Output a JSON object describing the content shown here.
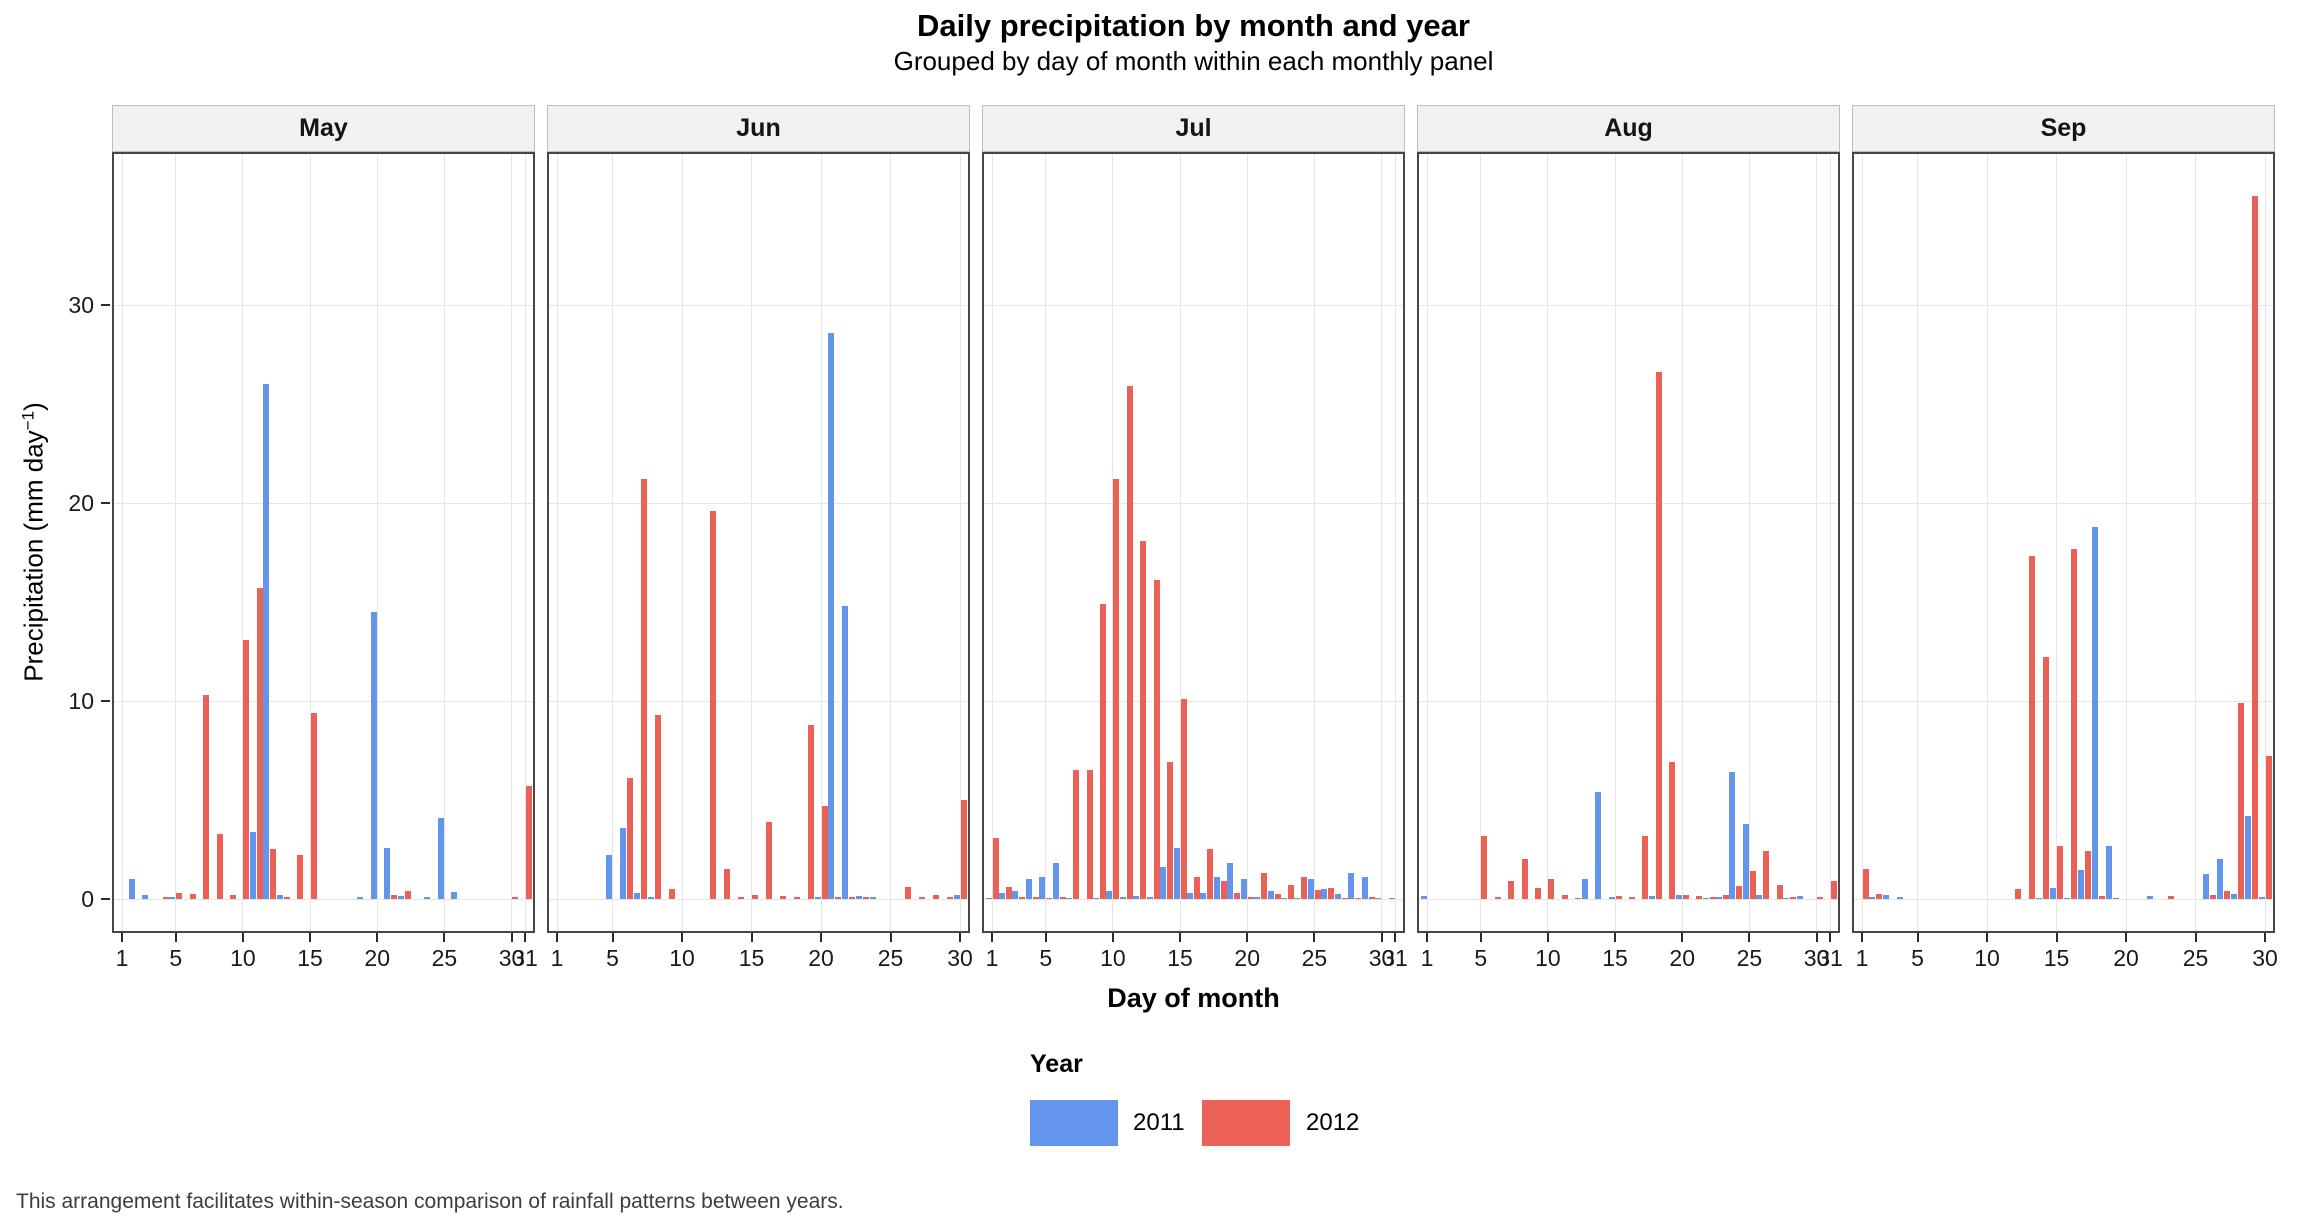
{
  "caption": "This arrangement facilitates within-season comparison of rainfall patterns between years.",
  "chart_data": {
    "type": "bar",
    "title": "Daily precipitation by month and year",
    "subtitle": "Grouped by day of month within each monthly panel",
    "xlabel": "Day of month",
    "ylabel": "Precipitation (mm day⁻¹)",
    "ylabel_parts": {
      "prefix": "Precipitation (mm day",
      "sup": "−1",
      "suffix": ")"
    },
    "ylim": [
      0,
      37.7
    ],
    "yticks": [
      0,
      10,
      20,
      30
    ],
    "grid": "major gridlines only, light gray on white panels",
    "legend_position": "bottom-center",
    "facet": "columns by month",
    "legend": {
      "title": "Year",
      "entries": [
        {
          "label": "2011",
          "color": "#6495ED"
        },
        {
          "label": "2012",
          "color": "#EB6156"
        }
      ]
    },
    "style": {
      "panel_border": "#474747",
      "strip_bg": "#F1F1F1",
      "strip_border": "#BDBDBD",
      "grid_color": "#E6E6E6",
      "tick_color": "#2b2b2b"
    },
    "panels": [
      {
        "month": "May",
        "days": 31,
        "xticks": [
          1,
          5,
          10,
          15,
          20,
          25,
          30,
          31
        ],
        "series": [
          {
            "name": "2011",
            "values": [
              0,
              1,
              0.2,
              0,
              0.1,
              0,
              0,
              0,
              0,
              0,
              3.4,
              26,
              0.2,
              0,
              0,
              0,
              0,
              0,
              0.1,
              14.5,
              2.6,
              0.15,
              0,
              0.1,
              4.1,
              0.35,
              0,
              0,
              0,
              0,
              0
            ]
          },
          {
            "name": "2012",
            "values": [
              0,
              0,
              0,
              0.1,
              0.3,
              0.25,
              10.3,
              3.3,
              0.2,
              13.1,
              15.7,
              2.5,
              0.1,
              2.2,
              9.4,
              0,
              0,
              0,
              0,
              0,
              0.2,
              0.4,
              0,
              0,
              0,
              0,
              0,
              0,
              0,
              0.1,
              5.7
            ]
          }
        ]
      },
      {
        "month": "Jun",
        "days": 30,
        "xticks": [
          1,
          5,
          10,
          15,
          20,
          25,
          30
        ],
        "series": [
          {
            "name": "2011",
            "values": [
              0,
              0,
              0,
              0,
              2.2,
              3.6,
              0.3,
              0.1,
              0,
              0,
              0,
              0,
              0,
              0,
              0,
              0,
              0,
              0,
              0,
              0.1,
              28.6,
              14.8,
              0.15,
              0.1,
              0,
              0,
              0,
              0,
              0,
              0.2
            ]
          },
          {
            "name": "2012",
            "values": [
              0,
              0,
              0,
              0,
              0,
              6.1,
              21.2,
              9.3,
              0.5,
              0,
              0,
              19.6,
              1.5,
              0.1,
              0.2,
              3.9,
              0.15,
              0.1,
              8.8,
              4.7,
              0.1,
              0.1,
              0.1,
              0,
              0,
              0.6,
              0.1,
              0.2,
              0.1,
              5
            ]
          }
        ]
      },
      {
        "month": "Jul",
        "days": 31,
        "xticks": [
          1,
          5,
          10,
          15,
          20,
          25,
          30,
          31
        ],
        "series": [
          {
            "name": "2011",
            "values": [
              0.05,
              0.3,
              0.4,
              1,
              1.1,
              1.8,
              0.05,
              0,
              0.05,
              0.4,
              0.1,
              0.15,
              0.1,
              1.6,
              2.6,
              0.3,
              0.3,
              1.1,
              1.8,
              1,
              0.1,
              0.4,
              0.05,
              0.05,
              1,
              0.5,
              0.25,
              1.3,
              1.1,
              0.05,
              0.05
            ]
          },
          {
            "name": "2012",
            "values": [
              3.1,
              0.6,
              0.1,
              0.1,
              0.05,
              0.1,
              6.5,
              6.5,
              14.9,
              21.2,
              25.9,
              18.1,
              16.1,
              6.9,
              10.1,
              1.1,
              2.5,
              0.9,
              0.3,
              0.1,
              1.3,
              0.25,
              0.7,
              1.1,
              0.45,
              0.55,
              0.05,
              0.05,
              0.1,
              0,
              0
            ]
          }
        ]
      },
      {
        "month": "Aug",
        "days": 31,
        "xticks": [
          1,
          5,
          10,
          15,
          20,
          25,
          30,
          31
        ],
        "series": [
          {
            "name": "2011",
            "values": [
              0.15,
              0,
              0,
              0,
              0,
              0,
              0,
              0,
              0,
              0,
              0,
              0,
              1,
              5.4,
              0.1,
              0,
              0,
              0.15,
              0,
              0.2,
              0,
              0.05,
              0.1,
              6.4,
              3.8,
              0.2,
              0,
              0.05,
              0.15,
              0,
              0
            ]
          },
          {
            "name": "2012",
            "values": [
              0,
              0,
              0,
              0,
              3.2,
              0.1,
              0.9,
              2,
              0.55,
              1,
              0.2,
              0.05,
              0,
              0,
              0.15,
              0.1,
              3.2,
              26.6,
              6.9,
              0.2,
              0.15,
              0.1,
              0.2,
              0.65,
              1.4,
              2.4,
              0.7,
              0.1,
              0,
              0.1,
              0.9
            ]
          }
        ]
      },
      {
        "month": "Sep",
        "days": 30,
        "xticks": [
          1,
          5,
          10,
          15,
          20,
          25,
          30
        ],
        "series": [
          {
            "name": "2011",
            "values": [
              0,
              0.1,
              0.2,
              0.1,
              0,
              0,
              0,
              0,
              0,
              0,
              0,
              0,
              0,
              0.05,
              0.55,
              0.05,
              1.45,
              18.8,
              2.7,
              0,
              0,
              0.15,
              0,
              0,
              0,
              1.25,
              2,
              0.25,
              4.2,
              0.1
            ]
          },
          {
            "name": "2012",
            "values": [
              1.5,
              0.25,
              0,
              0,
              0,
              0,
              0,
              0,
              0,
              0,
              0,
              0.5,
              17.3,
              12.2,
              2.7,
              17.7,
              2.4,
              0.15,
              0.05,
              0,
              0,
              0,
              0.15,
              0,
              0,
              0.2,
              0.4,
              9.9,
              35.5,
              7.2
            ]
          }
        ]
      }
    ]
  }
}
